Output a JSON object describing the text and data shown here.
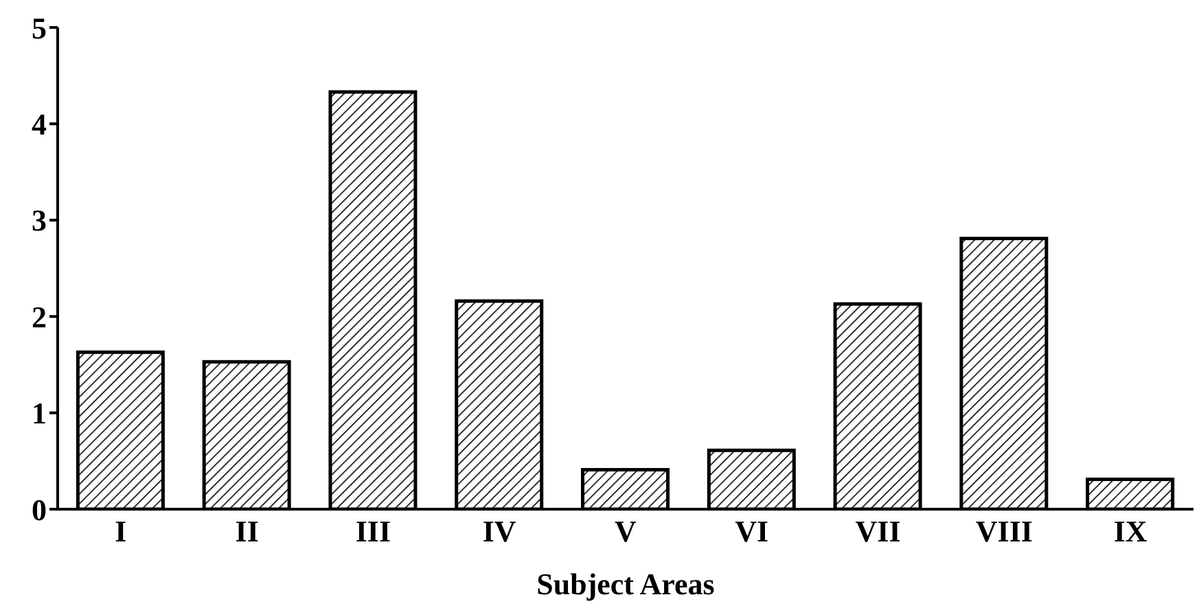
{
  "chart_data": {
    "type": "bar",
    "xlabel": "Subject Areas",
    "categories": [
      "I",
      "II",
      "III",
      "IV",
      "V",
      "VI",
      "VII",
      "VIII",
      "IX"
    ],
    "values": [
      1.63,
      1.53,
      4.33,
      2.16,
      0.41,
      0.61,
      2.13,
      2.81,
      0.31
    ],
    "color": "#000000",
    "ylim": [
      0,
      5
    ],
    "yticks": [
      0,
      1,
      2,
      3,
      4,
      5
    ],
    "grid": false
  }
}
